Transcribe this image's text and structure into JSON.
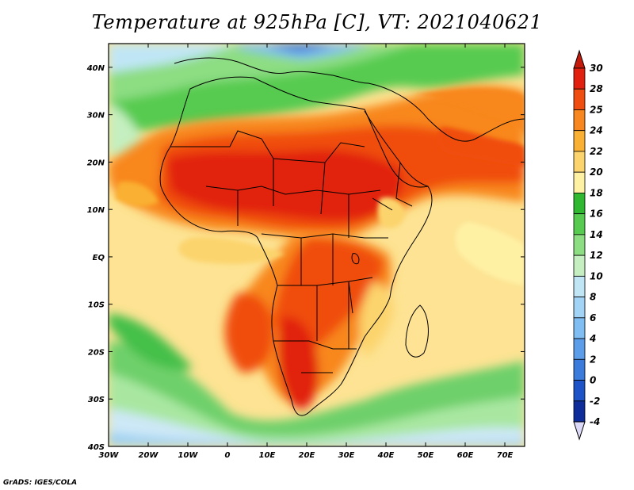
{
  "title": "Temperature at 925hPa [C], VT: 2021040621",
  "credit": "GrADS: IGES/COLA",
  "map": {
    "lon_range": [
      -30,
      75
    ],
    "lat_range": [
      -40,
      45
    ],
    "lon_ticks": [
      "30W",
      "20W",
      "10W",
      "0",
      "10E",
      "20E",
      "30E",
      "40E",
      "50E",
      "60E",
      "70E"
    ],
    "lat_ticks": [
      "40N",
      "30N",
      "20N",
      "10N",
      "EQ",
      "10S",
      "20S",
      "30S",
      "40S"
    ]
  },
  "colorbar": {
    "labels": [
      "30",
      "28",
      "25",
      "24",
      "22",
      "20",
      "18",
      "16",
      "14",
      "12",
      "10",
      "8",
      "6",
      "4",
      "2",
      "0",
      "-2",
      "-4"
    ],
    "colors": [
      "#e1200f",
      "#f04d10",
      "#f8871f",
      "#fab033",
      "#fcd46d",
      "#fff1a4",
      "#2fb830",
      "#56cb4f",
      "#8ddd83",
      "#c5efc0",
      "#c0e6f6",
      "#a3d3f5",
      "#7fbdf2",
      "#5c9de9",
      "#3b7bdb",
      "#1e53c7",
      "#0e2d9a",
      "#c7c3f3"
    ],
    "top_arrow_color": "#c41a0c",
    "bottom_arrow_color": "#dcd8f8"
  }
}
